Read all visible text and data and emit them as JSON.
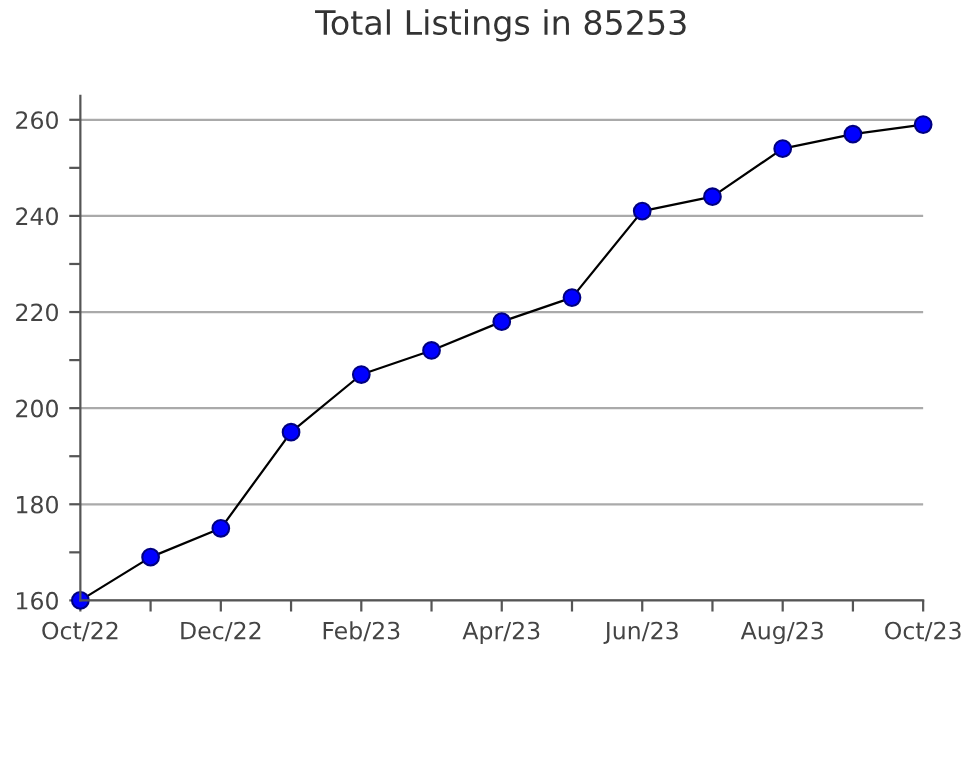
{
  "chart_data": {
    "type": "line",
    "title": "Total Listings in 85253",
    "categories": [
      "Oct/22",
      null,
      "Dec/22",
      null,
      "Feb/23",
      null,
      "Apr/23",
      null,
      "Jun/23",
      null,
      "Aug/23",
      null,
      "Oct/23"
    ],
    "series": [
      {
        "color": "#0000ff",
        "values": [
          160,
          169,
          175,
          195,
          207,
          212,
          218,
          223,
          241,
          244,
          254,
          257,
          259
        ]
      }
    ],
    "ylim": [
      160,
      265
    ],
    "yticks": [
      160,
      {
        "value": 170,
        "label": null
      },
      180,
      {
        "value": 190,
        "label": null
      },
      200,
      {
        "value": 210,
        "label": null
      },
      220,
      {
        "value": 230,
        "label": null
      },
      240,
      {
        "value": 250,
        "label": null
      },
      260
    ],
    "grid": "y",
    "marker": "circle",
    "line_style": "solid",
    "legend": false
  }
}
